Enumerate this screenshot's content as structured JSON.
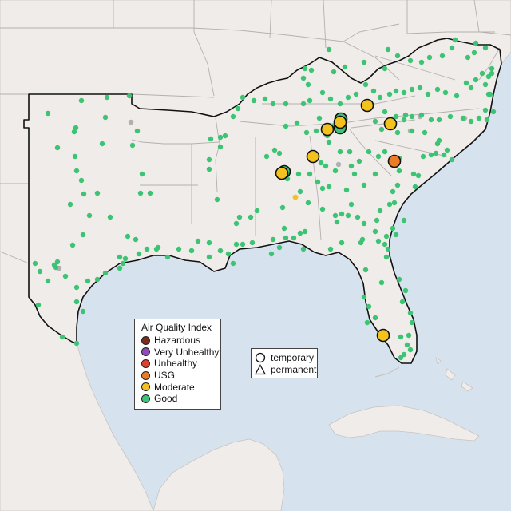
{
  "legend": {
    "title": "Air Quality Index",
    "categories": [
      {
        "label": "Hazardous",
        "color": "#7a2d1f"
      },
      {
        "label": "Very Unhealthy",
        "color": "#8b4fb3"
      },
      {
        "label": "Unhealthy",
        "color": "#e0402c"
      },
      {
        "label": "USG",
        "color": "#ec7b25"
      },
      {
        "label": "Moderate",
        "color": "#f4c21c"
      },
      {
        "label": "Good",
        "color": "#3cc373"
      }
    ]
  },
  "shape_key": {
    "items": [
      {
        "label": "temporary",
        "icon": "circle-outline-icon"
      },
      {
        "label": "permanent",
        "icon": "triangle-outline-icon"
      }
    ]
  },
  "colors": {
    "water": "#d6e3ee",
    "land": "#f0ecea",
    "state_border": "#b4b0ae",
    "region_outline": "#111111",
    "good": "#3cc373",
    "moderate": "#f4c21c",
    "usg": "#ec7b25",
    "no_data": "#b0b0b0"
  }
}
